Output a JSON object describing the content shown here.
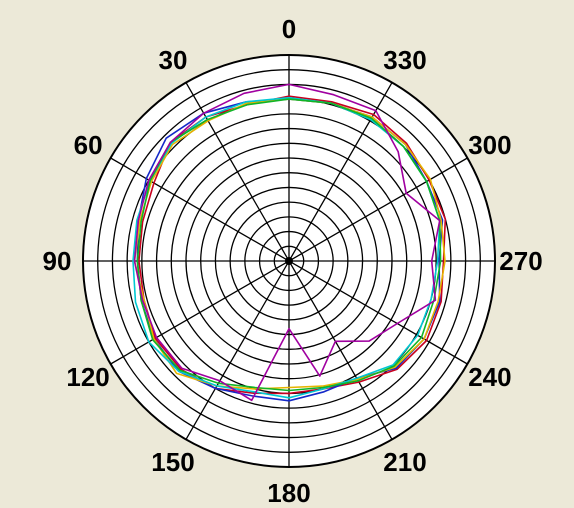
{
  "chart_data": {
    "type": "polar-line",
    "title": "",
    "angle_direction": "counterclockwise",
    "zero_position": "top",
    "angle_step": 30,
    "angle_labels": [
      "0",
      "30",
      "60",
      "90",
      "120",
      "150",
      "180",
      "210",
      "240",
      "270",
      "300",
      "330"
    ],
    "radial_rings": 14,
    "radial_max": 14,
    "grid": true,
    "background_color": "#ece9d8",
    "plot_background_color": "#ffffff",
    "theta": [
      0,
      15,
      30,
      45,
      60,
      75,
      90,
      105,
      120,
      135,
      150,
      165,
      180,
      195,
      210,
      225,
      240,
      255,
      270,
      285,
      300,
      315,
      330,
      345
    ],
    "series": [
      {
        "color": "#c8001e",
        "r": [
          11.2,
          11.0,
          11.3,
          11.4,
          10.6,
          10.3,
          10.2,
          10.2,
          10.5,
          10.4,
          10.0,
          9.3,
          9.0,
          9.0,
          9.5,
          10.4,
          10.8,
          10.7,
          10.5,
          11.0,
          11.0,
          11.3,
          11.5,
          11.2
        ]
      },
      {
        "color": "#1428c8",
        "r": [
          11.0,
          11.2,
          11.6,
          11.8,
          11.2,
          10.6,
          10.3,
          10.4,
          10.6,
          10.6,
          10.0,
          9.5,
          9.5,
          9.2,
          9.2,
          10.3,
          10.6,
          10.6,
          10.2,
          10.8,
          10.8,
          11.2,
          11.3,
          11.1
        ]
      },
      {
        "color": "#e6b400",
        "r": [
          11.0,
          11.1,
          11.0,
          11.2,
          10.8,
          10.5,
          10.5,
          10.2,
          10.6,
          10.8,
          9.8,
          9.0,
          8.6,
          8.8,
          9.3,
          10.2,
          10.6,
          10.5,
          10.6,
          10.7,
          11.1,
          11.2,
          11.3,
          11.1
        ]
      },
      {
        "color": "#00c8d2",
        "r": [
          11.1,
          11.2,
          11.3,
          11.3,
          10.9,
          10.7,
          10.6,
          10.8,
          11.0,
          10.6,
          9.8,
          9.2,
          9.3,
          9.0,
          9.2,
          10.0,
          10.1,
          10.0,
          10.1,
          10.6,
          10.8,
          11.0,
          11.1,
          11.1
        ]
      },
      {
        "color": "#10b428",
        "r": [
          11.0,
          11.0,
          11.1,
          11.4,
          10.9,
          10.4,
          10.3,
          10.4,
          10.7,
          10.5,
          9.6,
          8.9,
          8.8,
          8.9,
          9.4,
          10.1,
          10.4,
          10.2,
          10.3,
          10.6,
          10.8,
          11.0,
          11.2,
          11.1
        ]
      },
      {
        "color": "#a000a0",
        "r": [
          12.0,
          11.8,
          11.6,
          11.4,
          11.0,
          10.6,
          10.5,
          10.3,
          10.4,
          10.3,
          9.4,
          9.8,
          4.6,
          8.1,
          6.3,
          7.7,
          8.5,
          10.3,
          9.7,
          10.6,
          9.2,
          10.5,
          11.8,
          11.7
        ]
      }
    ]
  }
}
